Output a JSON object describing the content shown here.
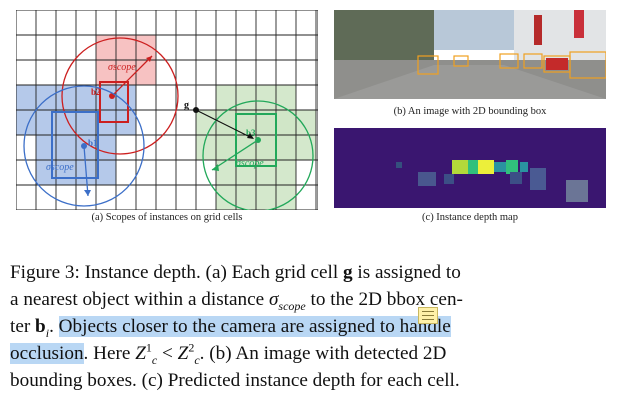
{
  "figure_a": {
    "caption": "(a) Scopes of instances on grid cells",
    "labels": {
      "sigma_red": "σscope",
      "sigma_blue": "σscope",
      "sigma_green": "σscope",
      "b1": "b1",
      "b2": "b2",
      "b3": "b3",
      "g": "g"
    },
    "colors": {
      "red": "#cc1f1f",
      "blue": "#3c6fc8",
      "green": "#22a85a"
    }
  },
  "figure_b": {
    "caption": "(b) An image with 2D bounding box"
  },
  "figure_c": {
    "caption": "(c) Instance depth map",
    "background": "#3a1670"
  },
  "caption": {
    "l1a": "Figure 3: Instance depth. (a) Each grid cell ",
    "g": "g",
    "l1b": " is assigned to",
    "l2a": "a nearest object within a distance ",
    "sigma": "σ",
    "sigma_sub": "scope",
    "l2b": " to the 2D bbox cen-",
    "l3a": "ter ",
    "bi": "b",
    "bi_sub": "i",
    "l3b": ". ",
    "l3hl": "Objects closer to the camera are assigned to handle",
    "l4hl": "occlusion",
    "l4a": ". Here ",
    "z": "Z",
    "z1_sup": "1",
    "z_sub": "c",
    "lt": " < ",
    "z2_sup": "2",
    "l4b": ". (b) An image with detected 2D",
    "l5": "bounding boxes. (c) Predicted instance depth for each cell."
  }
}
